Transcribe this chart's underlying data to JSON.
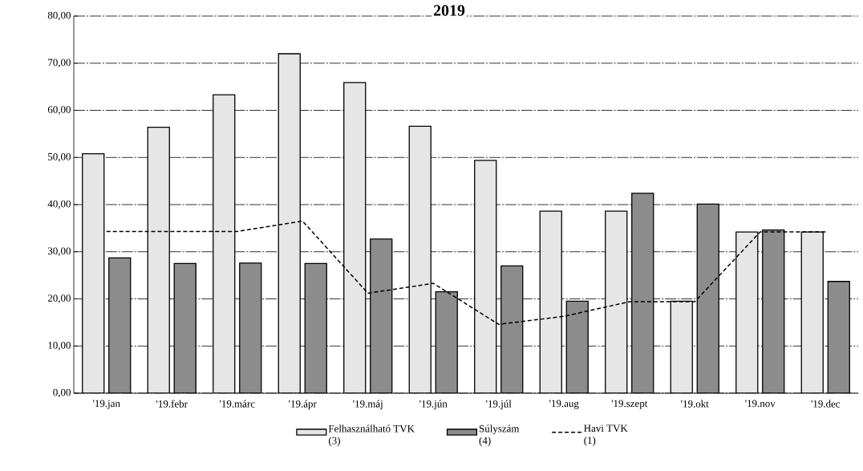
{
  "chart_data": {
    "type": "bar",
    "title": "2019",
    "categories": [
      "'19.jan",
      "'19.febr",
      "'19.márc",
      "'19.ápr",
      "'19.máj",
      "'19.jún",
      "'19.júl",
      "'19.aug",
      "'19.szept",
      "'19.okt",
      "'19.nov",
      "'19.dec"
    ],
    "series": [
      {
        "name": "Felhasználható TVK (3)",
        "color": "#e6e6e6",
        "values": [
          50.8,
          56.4,
          63.3,
          72.0,
          65.9,
          56.6,
          49.4,
          38.6,
          38.6,
          19.5,
          34.2,
          34.2
        ]
      },
      {
        "name": "Súlyszám (4)",
        "color": "#8c8c8c",
        "values": [
          28.7,
          27.5,
          27.6,
          27.5,
          32.7,
          21.5,
          27.0,
          19.5,
          42.4,
          40.1,
          34.6,
          23.7
        ]
      },
      {
        "name": "Havi TVK (1)",
        "type": "line",
        "color": "#000000",
        "line_style": "dashed",
        "values": [
          34.3,
          34.3,
          34.3,
          36.5,
          21.2,
          23.3,
          14.6,
          16.3,
          19.4,
          19.4,
          34.2,
          34.2
        ]
      }
    ],
    "ylim": [
      0,
      80
    ],
    "yticks": [
      {
        "value": 0,
        "label": "0,00"
      },
      {
        "value": 10,
        "label": "10,00"
      },
      {
        "value": 20,
        "label": "20,00"
      },
      {
        "value": 30,
        "label": "30,00"
      },
      {
        "value": 40,
        "label": "40,00"
      },
      {
        "value": 50,
        "label": "50,00"
      },
      {
        "value": 60,
        "label": "60,00"
      },
      {
        "value": 70,
        "label": "70,00"
      },
      {
        "value": 80,
        "label": "80,00"
      }
    ],
    "grid": "y",
    "legend": "bottom"
  }
}
